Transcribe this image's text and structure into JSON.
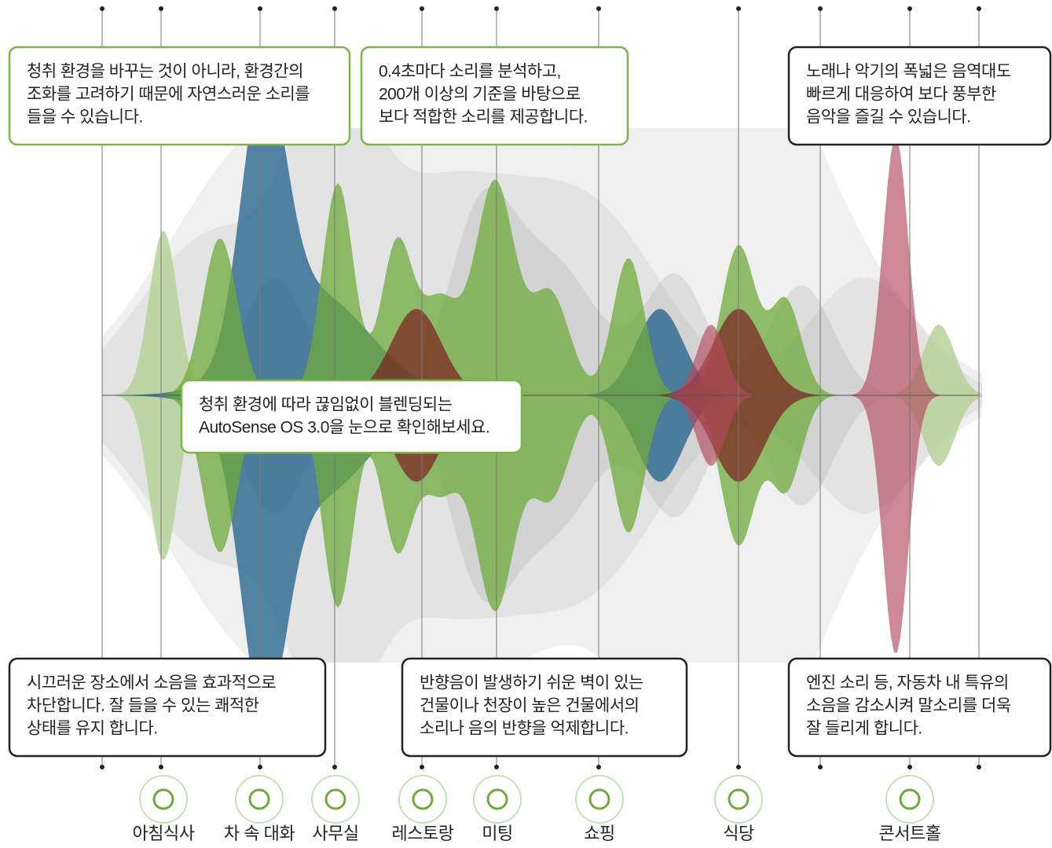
{
  "callouts": [
    {
      "lines": [
        "청취 환경을 바꾸는 것이 아니라, 환경간의",
        "조화를 고려하기 때문에 자연스러운 소리를",
        "들을 수 있습니다."
      ]
    },
    {
      "lines": [
        "0.4초마다 소리를 분석하고,",
        "200개 이상의 기준을 바탕으로",
        "보다 적합한 소리를 제공합니다."
      ]
    },
    {
      "lines": [
        "노래나 악기의 폭넓은 음역대도",
        "빠르게 대응하여 보다 풍부한",
        "음악을 즐길 수 있습니다."
      ]
    },
    {
      "lines": [
        "청취 환경에 따라 끊임없이 블렌딩되는",
        "AutoSense OS 3.0을 눈으로 확인해보세요."
      ]
    },
    {
      "lines": [
        "시끄러운 장소에서 소음을 효과적으로",
        "차단합니다. 잘 들을 수 있는 쾌적한",
        "상태를 유지 합니다."
      ]
    },
    {
      "lines": [
        "반향음이 발생하기 쉬운 벽이 있는",
        "건물이나 천장이 높은 건물에서의",
        "소리나 음의 반향을 억제합니다."
      ]
    },
    {
      "lines": [
        "엔진 소리 등, 자동차 내 특유의",
        "소음을 감소시켜 말소리를 더욱",
        "잘 들리게 합니다."
      ]
    }
  ],
  "scenes": [
    {
      "label": "아침식사"
    },
    {
      "label": "차 속 대화"
    },
    {
      "label": "사무실"
    },
    {
      "label": "레스토랑"
    },
    {
      "label": "미팅"
    },
    {
      "label": "쇼핑"
    },
    {
      "label": "식당"
    },
    {
      "label": "콘서트홀"
    }
  ]
}
